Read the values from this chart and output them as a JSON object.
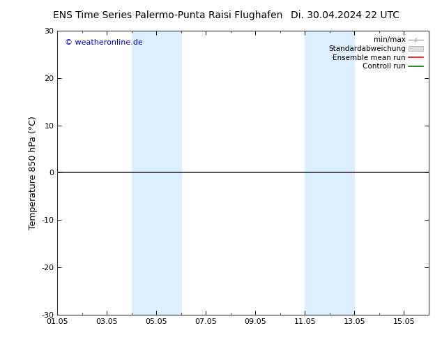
{
  "title_left": "ENS Time Series Palermo-Punta Raisi Flughafen",
  "title_right": "Di. 30.04.2024 22 UTC",
  "ylabel": "Temperature 850 hPa (°C)",
  "ylim": [
    -30,
    30
  ],
  "yticks": [
    -30,
    -20,
    -10,
    0,
    10,
    20,
    30
  ],
  "xtick_labels": [
    "01.05",
    "03.05",
    "05.05",
    "07.05",
    "09.05",
    "11.05",
    "13.05",
    "15.05"
  ],
  "xtick_positions": [
    0,
    2,
    4,
    6,
    8,
    10,
    12,
    14
  ],
  "xlim": [
    0,
    15
  ],
  "shade_bands": [
    {
      "xstart": 3.0,
      "xend": 5.0
    },
    {
      "xstart": 10.0,
      "xend": 12.0
    }
  ],
  "shade_color": "#ddeeff",
  "hline_y": 0,
  "hline_color": "#333333",
  "watermark": "© weatheronline.de",
  "watermark_color": "#0000cc",
  "legend_entries": [
    "min/max",
    "Standardabweichung",
    "Ensemble mean run",
    "Controll run"
  ],
  "legend_line_colors": [
    "#aaaaaa",
    "#cccccc",
    "#ff0000",
    "#007700"
  ],
  "bg_color": "#ffffff",
  "title_fontsize": 10,
  "ylabel_fontsize": 9,
  "tick_fontsize": 8,
  "legend_fontsize": 7.5
}
